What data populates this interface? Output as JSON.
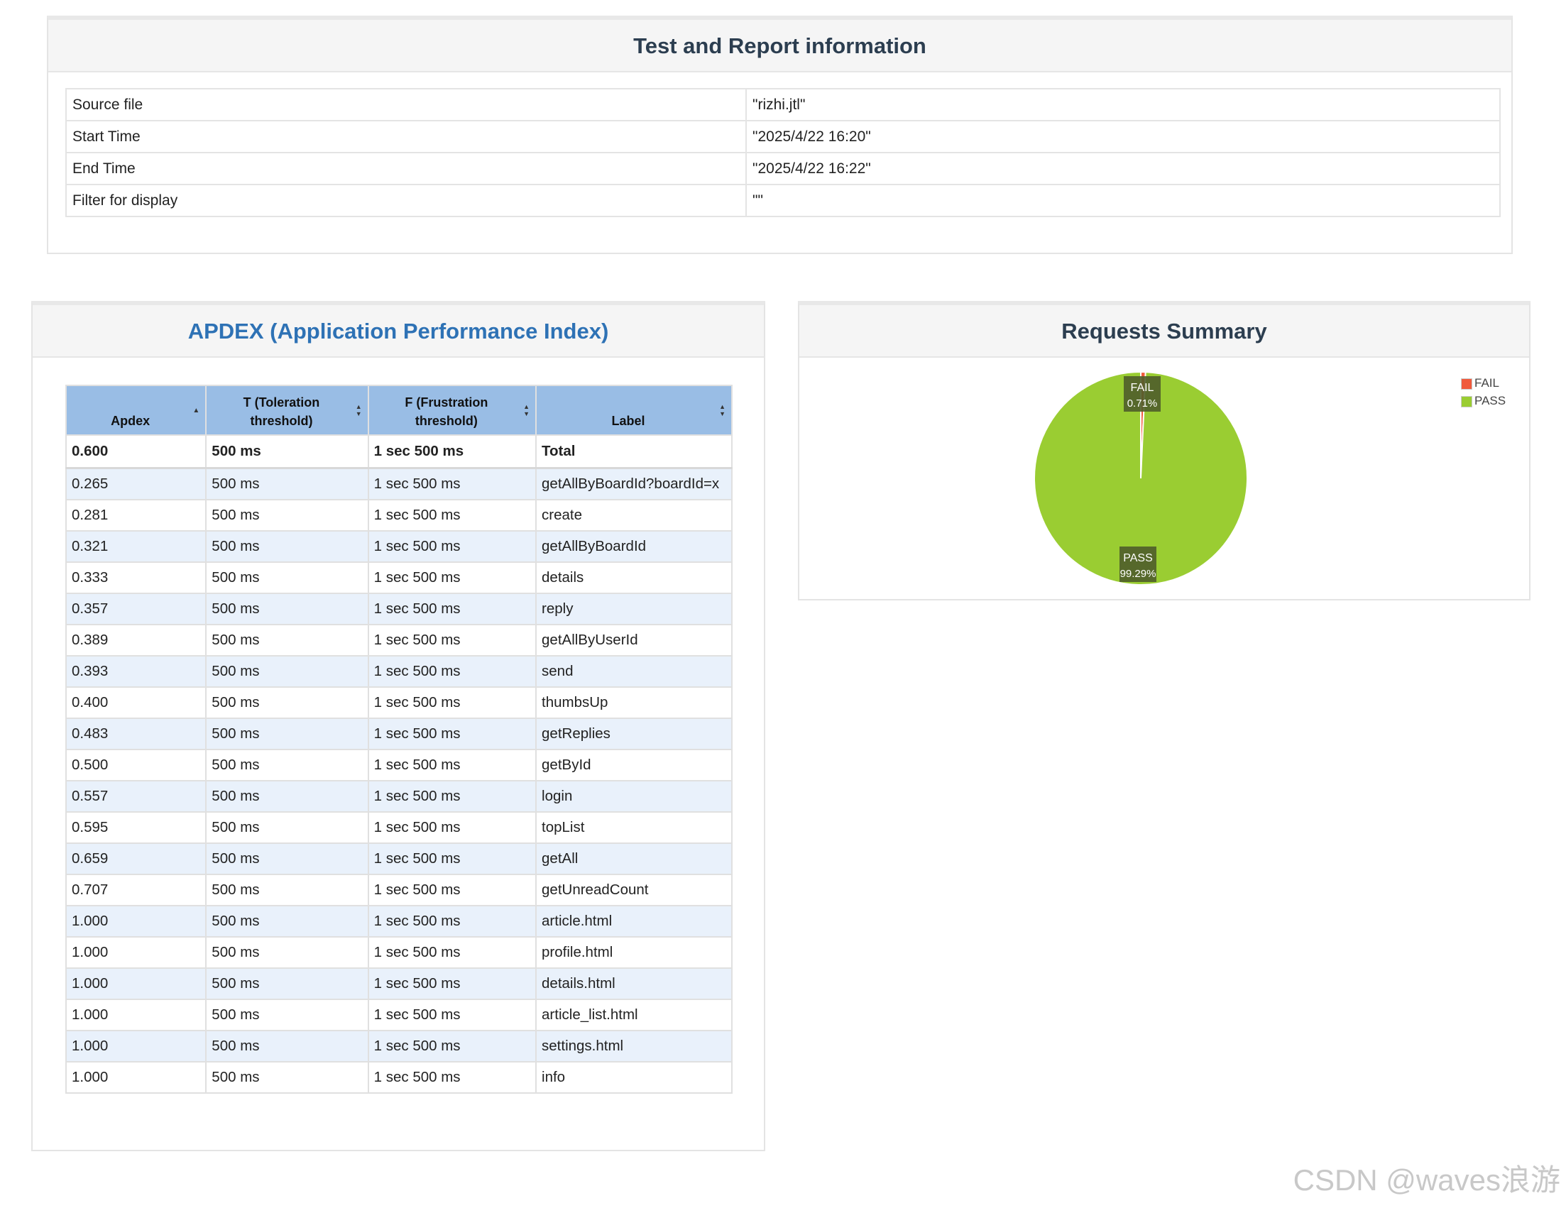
{
  "info": {
    "title": "Test and Report information",
    "rows": [
      {
        "label": "Source file",
        "value": "\"rizhi.jtl\""
      },
      {
        "label": "Start Time",
        "value": "\"2025/4/22 16:20\""
      },
      {
        "label": "End Time",
        "value": "\"2025/4/22 16:22\""
      },
      {
        "label": "Filter for display",
        "value": "\"\""
      }
    ]
  },
  "apdex": {
    "title": "APDEX (Application Performance Index)",
    "headers": [
      "Apdex",
      "T (Toleration threshold)",
      "F (Frustration threshold)",
      "Label"
    ],
    "header_lines": [
      [
        "Apdex"
      ],
      [
        "T (Toleration",
        "threshold)"
      ],
      [
        "F (Frustration",
        "threshold)"
      ],
      [
        "Label"
      ]
    ],
    "total": {
      "apdex": "0.600",
      "t": "500 ms",
      "f": "1 sec 500 ms",
      "label": "Total"
    },
    "rows": [
      {
        "apdex": "0.265",
        "t": "500 ms",
        "f": "1 sec 500 ms",
        "label": "getAllByBoardId?boardId=x"
      },
      {
        "apdex": "0.281",
        "t": "500 ms",
        "f": "1 sec 500 ms",
        "label": "create"
      },
      {
        "apdex": "0.321",
        "t": "500 ms",
        "f": "1 sec 500 ms",
        "label": "getAllByBoardId"
      },
      {
        "apdex": "0.333",
        "t": "500 ms",
        "f": "1 sec 500 ms",
        "label": "details"
      },
      {
        "apdex": "0.357",
        "t": "500 ms",
        "f": "1 sec 500 ms",
        "label": "reply"
      },
      {
        "apdex": "0.389",
        "t": "500 ms",
        "f": "1 sec 500 ms",
        "label": "getAllByUserId"
      },
      {
        "apdex": "0.393",
        "t": "500 ms",
        "f": "1 sec 500 ms",
        "label": "send"
      },
      {
        "apdex": "0.400",
        "t": "500 ms",
        "f": "1 sec 500 ms",
        "label": "thumbsUp"
      },
      {
        "apdex": "0.483",
        "t": "500 ms",
        "f": "1 sec 500 ms",
        "label": "getReplies"
      },
      {
        "apdex": "0.500",
        "t": "500 ms",
        "f": "1 sec 500 ms",
        "label": "getById"
      },
      {
        "apdex": "0.557",
        "t": "500 ms",
        "f": "1 sec 500 ms",
        "label": "login"
      },
      {
        "apdex": "0.595",
        "t": "500 ms",
        "f": "1 sec 500 ms",
        "label": "topList"
      },
      {
        "apdex": "0.659",
        "t": "500 ms",
        "f": "1 sec 500 ms",
        "label": "getAll"
      },
      {
        "apdex": "0.707",
        "t": "500 ms",
        "f": "1 sec 500 ms",
        "label": "getUnreadCount"
      },
      {
        "apdex": "1.000",
        "t": "500 ms",
        "f": "1 sec 500 ms",
        "label": "article.html"
      },
      {
        "apdex": "1.000",
        "t": "500 ms",
        "f": "1 sec 500 ms",
        "label": "profile.html"
      },
      {
        "apdex": "1.000",
        "t": "500 ms",
        "f": "1 sec 500 ms",
        "label": "details.html"
      },
      {
        "apdex": "1.000",
        "t": "500 ms",
        "f": "1 sec 500 ms",
        "label": "article_list.html"
      },
      {
        "apdex": "1.000",
        "t": "500 ms",
        "f": "1 sec 500 ms",
        "label": "settings.html"
      },
      {
        "apdex": "1.000",
        "t": "500 ms",
        "f": "1 sec 500 ms",
        "label": "info"
      }
    ]
  },
  "summary": {
    "title": "Requests Summary"
  },
  "chart_data": {
    "type": "pie",
    "slices": [
      {
        "name": "FAIL",
        "value": 0.71,
        "label": "0.71%",
        "color": "#f05a3c"
      },
      {
        "name": "PASS",
        "value": 99.29,
        "label": "99.29%",
        "color": "#9acd32"
      }
    ],
    "legend": [
      "FAIL",
      "PASS"
    ],
    "legend_position": "top-right"
  },
  "watermark": "CSDN @waves浪游"
}
